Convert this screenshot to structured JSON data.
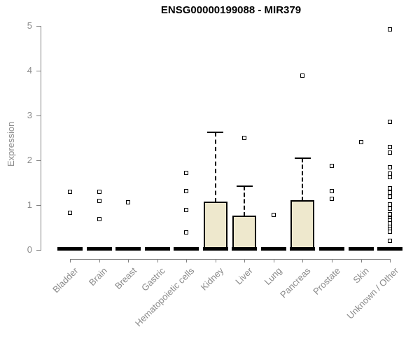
{
  "chart_data": {
    "type": "boxplot",
    "title": "ENSG00000199088 - MIR379",
    "xlabel": "",
    "ylabel": "Expression",
    "ylim": [
      0,
      5
    ],
    "yticks": [
      0,
      1,
      2,
      3,
      4,
      5
    ],
    "grid": false,
    "legend": "none",
    "categories": [
      "Bladder",
      "Brain",
      "Breast",
      "Gastric",
      "Hematopoietic cells",
      "Kidney",
      "Liver",
      "Lung",
      "Pancreas",
      "Prostate",
      "Skin",
      "Unknown / Other"
    ],
    "series": [
      {
        "category": "Bladder",
        "median": 0,
        "q1": 0,
        "q3": 0,
        "whisker_low": 0,
        "whisker_high": 0,
        "outliers": [
          1.3,
          0.83
        ]
      },
      {
        "category": "Brain",
        "median": 0,
        "q1": 0,
        "q3": 0,
        "whisker_low": 0,
        "whisker_high": 0,
        "outliers": [
          1.3,
          1.09,
          0.69
        ]
      },
      {
        "category": "Breast",
        "median": 0,
        "q1": 0,
        "q3": 0,
        "whisker_low": 0,
        "whisker_high": 0,
        "outliers": [
          1.06
        ]
      },
      {
        "category": "Gastric",
        "median": 0,
        "q1": 0,
        "q3": 0,
        "whisker_low": 0,
        "whisker_high": 0,
        "outliers": []
      },
      {
        "category": "Hematopoietic cells",
        "median": 0,
        "q1": 0,
        "q3": 0,
        "whisker_low": 0,
        "whisker_high": 0,
        "outliers": [
          1.72,
          1.31,
          0.89,
          0.39
        ]
      },
      {
        "category": "Kidney",
        "median": 0,
        "q1": 0,
        "q3": 1.07,
        "whisker_low": 0,
        "whisker_high": 2.62,
        "outliers": []
      },
      {
        "category": "Liver",
        "median": 0,
        "q1": 0,
        "q3": 0.75,
        "whisker_low": 0,
        "whisker_high": 1.42,
        "outliers": [
          2.5
        ]
      },
      {
        "category": "Lung",
        "median": 0,
        "q1": 0,
        "q3": 0,
        "whisker_low": 0,
        "whisker_high": 0,
        "outliers": [
          0.78
        ]
      },
      {
        "category": "Pancreas",
        "median": 0,
        "q1": 0,
        "q3": 1.09,
        "whisker_low": 0,
        "whisker_high": 2.05,
        "outliers": [
          3.89
        ]
      },
      {
        "category": "Prostate",
        "median": 0,
        "q1": 0,
        "q3": 0,
        "whisker_low": 0,
        "whisker_high": 0,
        "outliers": [
          1.88,
          1.31,
          1.14
        ]
      },
      {
        "category": "Skin",
        "median": 0,
        "q1": 0,
        "q3": 0,
        "whisker_low": 0,
        "whisker_high": 0,
        "outliers": [
          2.41
        ]
      },
      {
        "category": "Unknown / Other",
        "median": 0,
        "q1": 0,
        "q3": 0,
        "whisker_low": 0,
        "whisker_high": 0,
        "outliers": [
          4.92,
          2.86,
          2.3,
          2.17,
          1.84,
          1.7,
          1.63,
          1.38,
          1.28,
          1.18,
          1.02,
          0.92,
          0.79,
          0.71,
          0.65,
          0.59,
          0.52,
          0.46,
          0.4,
          0.21
        ]
      }
    ],
    "colors": {
      "box_fill": "#EEE8CD",
      "box_border": "#000000",
      "median": "#000000",
      "whisker": "#000000",
      "outlier_border": "#000000",
      "outlier_fill": "#ffffff",
      "axis": "#808080",
      "tick_label": "#8a8a8a",
      "title": "#000000",
      "background": "#ffffff"
    }
  }
}
